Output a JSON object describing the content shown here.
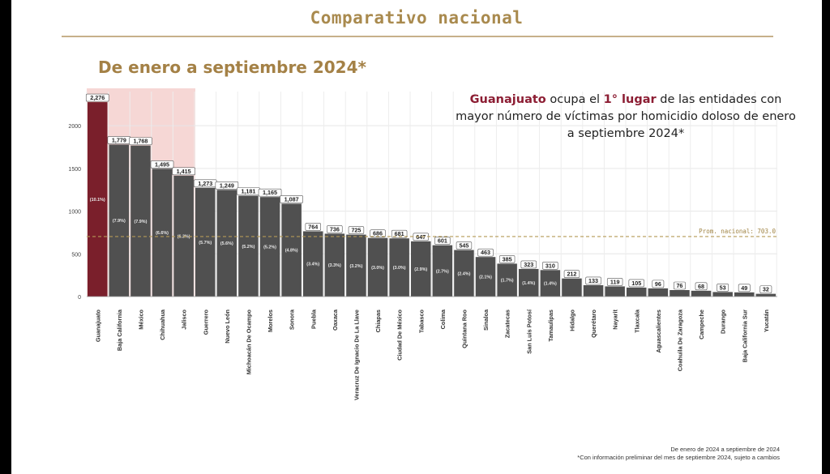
{
  "header": {
    "title": "Comparativo nacional"
  },
  "subtitle": "De enero a septiembre 2024*",
  "callout": {
    "state": "Guanajuato",
    "text1": " ocupa el ",
    "rank": "1° lugar",
    "text2": " de las entidades con mayor número de víctimas por homicidio doloso de enero a septiembre 2024*"
  },
  "footnote": {
    "line1": "De enero de 2024 a septiembre de 2024",
    "line2": "*Con información preliminar del mes de septiembre 2024, sujeto a cambios"
  },
  "colors": {
    "highlight_bar": "#7a1f2b",
    "bar": "#505050",
    "highlight_bg": "#f6d7d5",
    "avg_line": "#b59a56",
    "label_text": "#333333"
  },
  "chart_data": {
    "type": "bar",
    "title": "",
    "xlabel": "",
    "ylabel": "",
    "ylim": [
      0,
      2400
    ],
    "yticks": [
      0,
      500,
      1000,
      1500,
      2000
    ],
    "grid": true,
    "categories": [
      "Guanajuato",
      "Baja California",
      "México",
      "Chihuahua",
      "Jalisco",
      "Guerrero",
      "Nuevo León",
      "Michoacán De Ocampo",
      "Morelos",
      "Sonora",
      "Puebla",
      "Oaxaca",
      "Veracruz De Ignacio De La Llave",
      "Chiapas",
      "Ciudad De México",
      "Tabasco",
      "Colima",
      "Quintana Roo",
      "Sinaloa",
      "Zacatecas",
      "San Luis Potosí",
      "Tamaulipas",
      "Hidalgo",
      "Querétaro",
      "Nayarit",
      "Tlaxcala",
      "Aguascalientes",
      "Coahuila De Zaragoza",
      "Campeche",
      "Durango",
      "Baja California Sur",
      "Yucatán"
    ],
    "values": [
      2276,
      1779,
      1768,
      1495,
      1415,
      1273,
      1249,
      1181,
      1165,
      1087,
      764,
      736,
      725,
      686,
      681,
      647,
      601,
      545,
      463,
      385,
      323,
      310,
      212,
      133,
      119,
      105,
      96,
      76,
      68,
      53,
      49,
      32
    ],
    "value_labels": [
      "2,276",
      "1,779",
      "1,768",
      "1,495",
      "1,415",
      "1,273",
      "1,249",
      "1,181",
      "1,165",
      "1,087",
      "764",
      "736",
      "725",
      "686",
      "681",
      "647",
      "601",
      "545",
      "463",
      "385",
      "323",
      "310",
      "212",
      "133",
      "119",
      "105",
      "96",
      "76",
      "68",
      "53",
      "49",
      "32"
    ],
    "percent_labels": [
      "(10.1%)",
      "(7.9%)",
      "(7.9%)",
      "(6.6%)",
      "(6.3%)",
      "(5.7%)",
      "(5.6%)",
      "(5.2%)",
      "(5.2%)",
      "(4.8%)",
      "(3.4%)",
      "(3.3%)",
      "(3.2%)",
      "(3.0%)",
      "(3.0%)",
      "(2.9%)",
      "(2.7%)",
      "(2.4%)",
      "(2.1%)",
      "(1.7%)",
      "(1.4%)",
      "(1.4%)",
      "",
      "",
      "",
      "",
      "",
      "",
      "",
      "",
      "",
      ""
    ],
    "highlight_count": 5,
    "highlight_index": 0,
    "average": {
      "value": 703.0,
      "label": "Prom. nacional: 703.0"
    }
  }
}
